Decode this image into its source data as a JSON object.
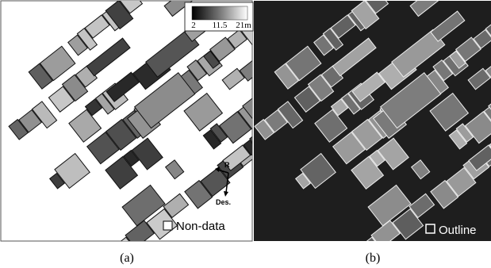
{
  "colorbar": {
    "labels": [
      "2",
      "11.5",
      "21m"
    ]
  },
  "panel_a": {
    "compass": {
      "ref": "R",
      "dir": "Des."
    },
    "legend": "Non-data",
    "caption": "(a)"
  },
  "panel_b": {
    "legend": "Outline",
    "caption": "(b)"
  }
}
